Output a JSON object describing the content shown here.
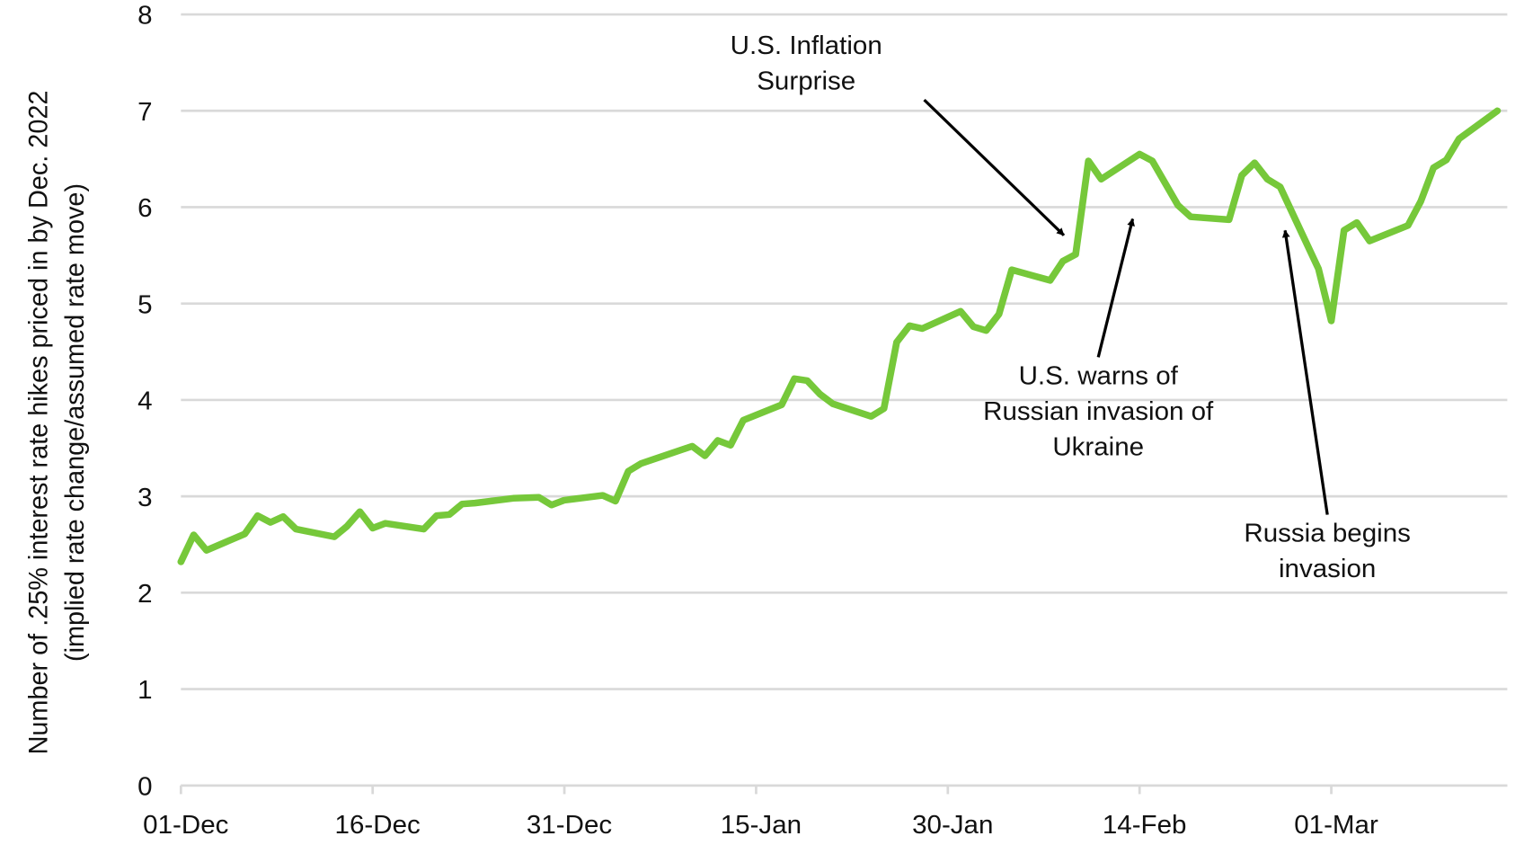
{
  "chart_data": {
    "type": "line",
    "title": "",
    "xlabel": "",
    "ylabel": [
      "Number of .25% interest rate hikes priced in by Dec. 2022",
      "(implied rate change/assumed rate move)"
    ],
    "ylim": [
      0,
      8
    ],
    "yticks": [
      "0",
      "1",
      "2",
      "3",
      "4",
      "5",
      "6",
      "7",
      "8"
    ],
    "xticks": [
      "01-Dec",
      "16-Dec",
      "31-Dec",
      "15-Jan",
      "30-Jan",
      "14-Feb",
      "01-Mar"
    ],
    "xlim": [
      "01-Dec",
      "14-Mar"
    ],
    "grid": "horizontal",
    "legend": "none",
    "line_color": "#76c83a",
    "series": [
      {
        "x": [
          "01-Dec",
          "02-Dec",
          "03-Dec",
          "06-Dec",
          "07-Dec",
          "08-Dec",
          "09-Dec",
          "10-Dec",
          "13-Dec",
          "14-Dec",
          "15-Dec",
          "16-Dec",
          "17-Dec",
          "20-Dec",
          "21-Dec",
          "22-Dec",
          "23-Dec",
          "24-Dec",
          "27-Dec",
          "29-Dec",
          "30-Dec",
          "31-Dec",
          "03-Jan",
          "04-Jan",
          "05-Jan",
          "06-Jan",
          "10-Jan",
          "11-Jan",
          "12-Jan",
          "13-Jan",
          "14-Jan",
          "17-Jan",
          "18-Jan",
          "19-Jan",
          "20-Jan",
          "21-Jan",
          "24-Jan",
          "25-Jan",
          "26-Jan",
          "27-Jan",
          "28-Jan",
          "31-Jan",
          "01-Feb",
          "02-Feb",
          "03-Feb",
          "04-Feb",
          "07-Feb",
          "08-Feb",
          "09-Feb",
          "10-Feb",
          "11-Feb",
          "14-Feb",
          "15-Feb",
          "17-Feb",
          "18-Feb",
          "21-Feb",
          "22-Feb",
          "23-Feb",
          "24-Feb",
          "25-Feb",
          "28-Feb",
          "01-Mar",
          "02-Mar",
          "03-Mar",
          "04-Mar",
          "07-Mar",
          "08-Mar",
          "09-Mar",
          "10-Mar",
          "11-Mar",
          "14-Mar"
        ],
        "y": [
          2.32,
          2.6,
          2.44,
          2.61,
          2.8,
          2.73,
          2.79,
          2.66,
          2.58,
          2.69,
          2.84,
          2.67,
          2.72,
          2.66,
          2.8,
          2.81,
          2.92,
          2.93,
          2.98,
          2.99,
          2.91,
          2.96,
          3.01,
          2.95,
          3.26,
          3.34,
          3.52,
          3.42,
          3.58,
          3.53,
          3.79,
          3.95,
          4.22,
          4.2,
          4.06,
          3.96,
          3.83,
          3.91,
          4.6,
          4.77,
          4.74,
          4.92,
          4.76,
          4.72,
          4.89,
          5.35,
          5.24,
          5.44,
          5.51,
          6.48,
          6.29,
          6.55,
          6.48,
          6.02,
          5.9,
          5.87,
          6.33,
          6.46,
          6.29,
          6.21,
          5.36,
          4.82,
          5.76,
          5.84,
          5.65,
          5.81,
          6.06,
          6.41,
          6.49,
          6.71,
          7.0
        ]
      }
    ],
    "annotations": [
      {
        "lines": [
          "U.S. Inflation",
          "Surprise"
        ]
      },
      {
        "lines": [
          "U.S. warns of",
          "Russian invasion of",
          "Ukraine"
        ]
      },
      {
        "lines": [
          "Russia begins",
          "invasion"
        ]
      }
    ]
  }
}
